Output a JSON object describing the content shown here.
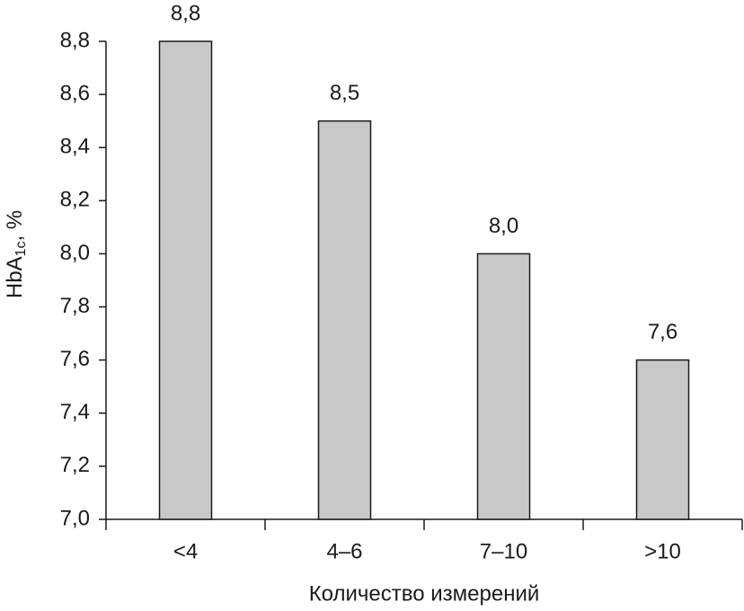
{
  "chart_data": {
    "type": "bar",
    "ylabel": [
      "HbA",
      "1c",
      ", %"
    ],
    "xlabel": "Количество измерений",
    "categories": [
      "<4",
      "4–6",
      "7–10",
      ">10"
    ],
    "values": [
      8.8,
      8.5,
      8.0,
      7.6
    ],
    "value_labels": [
      "8,8",
      "8,5",
      "8,0",
      "7,6"
    ],
    "color": "#c8c8c8",
    "ylim": [
      7.0,
      8.8
    ],
    "yticks": [
      {
        "value": 7.0,
        "label": "7,0"
      },
      {
        "value": 7.2,
        "label": "7,2"
      },
      {
        "value": 7.4,
        "label": "7,4"
      },
      {
        "value": 7.6,
        "label": "7,6"
      },
      {
        "value": 7.8,
        "label": "7,8"
      },
      {
        "value": 8.0,
        "label": "8,0"
      },
      {
        "value": 8.2,
        "label": "8,2"
      },
      {
        "value": 8.4,
        "label": "8,4"
      },
      {
        "value": 8.6,
        "label": "8,6"
      },
      {
        "value": 8.8,
        "label": "8,8"
      }
    ],
    "grid": false
  }
}
